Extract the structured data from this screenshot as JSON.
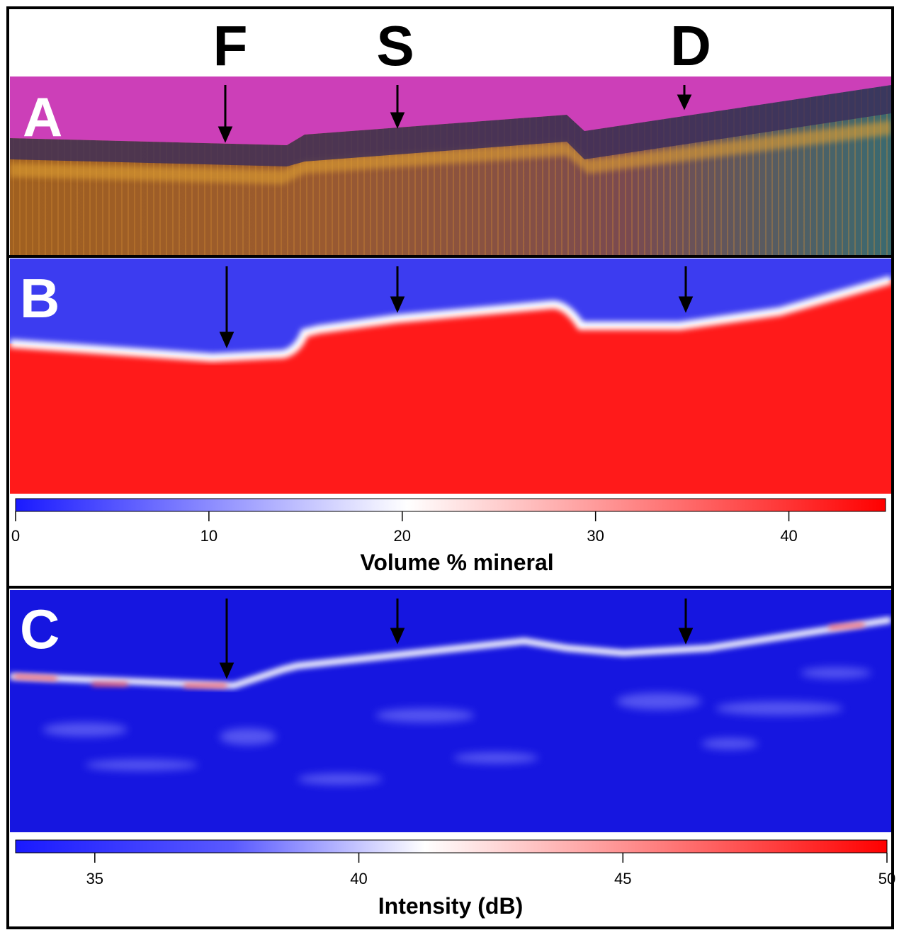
{
  "column_labels": [
    "F",
    "S",
    "D"
  ],
  "panels": [
    {
      "label": "A"
    },
    {
      "label": "B"
    },
    {
      "label": "C"
    }
  ],
  "colorbars": [
    {
      "label": "Volume % mineral",
      "lim": [
        0,
        45
      ],
      "ticks": [
        0,
        10,
        20,
        30,
        40
      ]
    },
    {
      "label": "Intensity (dB)",
      "lim": [
        33.5,
        50
      ],
      "ticks": [
        35,
        40,
        45,
        50
      ]
    }
  ]
}
